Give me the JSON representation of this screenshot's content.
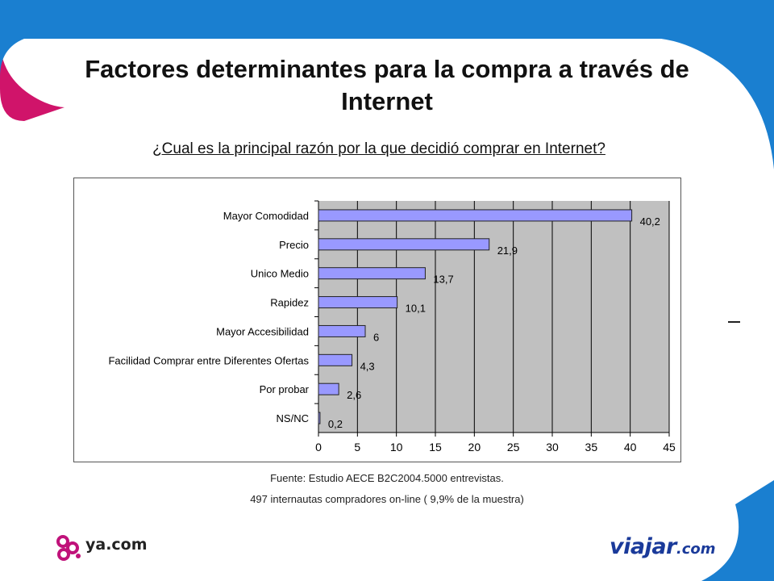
{
  "slide": {
    "title_line1": "Factores determinantes para la compra a través de",
    "title_line2": "Internet",
    "question": "¿Cual es la principal razón por la que decidió comprar en Internet?",
    "footnote_1": "Fuente: Estudio AECE B2C2004.5000 entrevistas.",
    "footnote_2": "497 internautas compradores on-line ( 9,9% de la muestra)"
  },
  "logos": {
    "left": "ya.com",
    "right_main": "viajar",
    "right_suffix": ".com"
  },
  "colors": {
    "bar_fill": "#9999ff",
    "bar_stroke": "#222222",
    "plot_bg": "#c0c0c0",
    "accent_blue": "#1a7fd0",
    "accent_magenta": "#d0146a"
  },
  "chart_data": {
    "type": "bar",
    "orientation": "horizontal",
    "title": "",
    "xlabel": "",
    "ylabel": "",
    "categories": [
      "Mayor Comodidad",
      "Precio",
      "Unico Medio",
      "Rapidez",
      "Mayor Accesibilidad",
      "Facilidad Comprar entre Diferentes Ofertas",
      "Por  probar",
      "NS/NC"
    ],
    "values": [
      40.2,
      21.9,
      13.7,
      10.1,
      6,
      4.3,
      2.6,
      0.2
    ],
    "value_labels": [
      "40,2",
      "21,9",
      "13,7",
      "10,1",
      "6",
      "4,3",
      "2,6",
      "0,2"
    ],
    "xlim": [
      0,
      45
    ],
    "xticks": [
      0,
      5,
      10,
      15,
      20,
      25,
      30,
      35,
      40,
      45
    ],
    "grid": "vertical",
    "legend": "none"
  }
}
